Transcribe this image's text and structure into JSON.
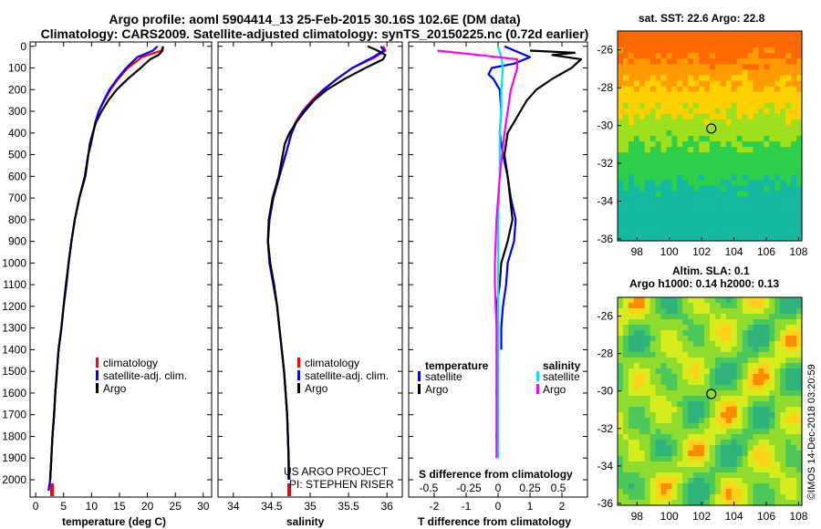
{
  "header": {
    "line1": "Argo profile: aoml 5904414_13 25-Feb-2015 30.16S 102.6E (DM data)",
    "line2": "Climatology: CARS2009. Satellite-adjusted climatology: synTS_20150225.nc (0.72d earlier)"
  },
  "colors": {
    "climatology": "#ff0000",
    "satellite": "#0000ff",
    "argo": "#000000",
    "sat_salinity": "#00e5ff",
    "argo_salinity_diff": "#ff00ff"
  },
  "depth_ticks": [
    "0",
    "100",
    "200",
    "300",
    "400",
    "500",
    "600",
    "700",
    "800",
    "900",
    "1000",
    "1100",
    "1200",
    "1300",
    "1400",
    "1500",
    "1600",
    "1700",
    "1800",
    "1900",
    "2000"
  ],
  "legend": {
    "climatology": "climatology",
    "satellite": "satellite-adj. clim.",
    "argo": "Argo"
  },
  "diff_legend": {
    "temperature_title": "temperature",
    "salinity_title": "salinity",
    "satellite": "satellite",
    "argo": "Argo"
  },
  "credits": {
    "line1": "US ARGO PROJECT",
    "line2": "PI: STEPHEN RISER"
  },
  "maps": {
    "sst_title": "sat. SST: 22.6 Argo: 22.8",
    "sla_line1": "Altim. SLA: 0.1",
    "sla_line2": "Argo h1000: 0.14 h2000: 0.13",
    "lon_ticks": [
      "98",
      "100",
      "102",
      "104",
      "106",
      "108"
    ],
    "lat_ticks": [
      "-26",
      "-28",
      "-30",
      "-32",
      "-34",
      "-36"
    ]
  },
  "stamp": "©IMOS 14-Dec-2018 03:20:59",
  "chart_data": [
    {
      "type": "line",
      "xlabel": "temperature (deg C)",
      "ylabel": "",
      "xlim": [
        -1,
        31.5
      ],
      "ylim": [
        2080,
        -20
      ],
      "x_ticks": [
        "0",
        "5",
        "10",
        "15",
        "20",
        "25",
        "30"
      ],
      "series": [
        {
          "name": "climatology",
          "x": [
            22.8,
            22.5,
            19.0,
            16.5,
            14.8,
            13.4,
            12.3,
            11.3,
            10.7,
            10.3,
            9.9,
            9.4,
            8.8,
            7.8,
            7.0,
            6.4,
            5.9,
            5.5,
            5.0,
            4.6,
            4.1,
            3.8,
            3.5,
            3.3,
            3.0,
            2.8,
            2.6,
            2.3
          ],
          "y": [
            0,
            20,
            50,
            100,
            150,
            200,
            250,
            300,
            350,
            400,
            450,
            500,
            600,
            700,
            800,
            900,
            1000,
            1100,
            1200,
            1300,
            1400,
            1500,
            1600,
            1700,
            1800,
            1900,
            2000,
            2050
          ]
        },
        {
          "name": "satellite-adj. clim.",
          "x": [
            21.8,
            21.0,
            18.2,
            16.2,
            14.6,
            13.2,
            12.2,
            11.3,
            10.7,
            10.3,
            9.9,
            9.4,
            8.8,
            7.8,
            7.0,
            6.4,
            5.9,
            5.5,
            5.0,
            4.6,
            4.1,
            3.8,
            3.5,
            3.3,
            3.0,
            2.8,
            2.6,
            2.3
          ],
          "y": [
            0,
            20,
            50,
            100,
            150,
            200,
            250,
            300,
            350,
            400,
            450,
            500,
            600,
            700,
            800,
            900,
            1000,
            1100,
            1200,
            1300,
            1400,
            1500,
            1600,
            1700,
            1800,
            1900,
            2000,
            2050
          ]
        },
        {
          "name": "Argo",
          "x": [
            22.8,
            22.7,
            22.0,
            20.5,
            18.8,
            16.5,
            14.5,
            13.0,
            11.8,
            10.8,
            10.2,
            9.7,
            8.9,
            7.8,
            7.0,
            6.4,
            5.9,
            5.4,
            5.0,
            4.6,
            4.1,
            3.8,
            3.5,
            3.3,
            3.0,
            2.8,
            2.6
          ],
          "y": [
            0,
            20,
            40,
            60,
            100,
            150,
            200,
            250,
            300,
            350,
            400,
            450,
            600,
            700,
            800,
            900,
            1000,
            1100,
            1200,
            1300,
            1400,
            1500,
            1600,
            1700,
            1800,
            1900,
            2000
          ]
        }
      ]
    },
    {
      "type": "line",
      "xlabel": "salinity",
      "ylabel": "",
      "xlim": [
        33.8,
        36.2
      ],
      "ylim": [
        2080,
        -20
      ],
      "x_ticks": [
        "34",
        "34.5",
        "35",
        "35.5",
        "36"
      ],
      "series": [
        {
          "name": "climatology",
          "x": [
            35.95,
            35.98,
            35.85,
            35.55,
            35.35,
            35.17,
            35.02,
            34.9,
            34.81,
            34.75,
            34.72,
            34.68,
            34.6,
            34.52,
            34.47,
            34.45,
            34.48,
            34.53,
            34.57,
            34.6,
            34.63,
            34.66,
            34.68,
            34.7,
            34.71,
            34.72,
            34.72
          ],
          "y": [
            0,
            20,
            50,
            100,
            150,
            200,
            250,
            300,
            350,
            400,
            450,
            500,
            600,
            700,
            800,
            900,
            1000,
            1100,
            1200,
            1300,
            1400,
            1500,
            1600,
            1700,
            1800,
            1900,
            2000
          ]
        },
        {
          "name": "satellite-adj. clim.",
          "x": [
            35.92,
            35.96,
            35.82,
            35.55,
            35.35,
            35.18,
            35.04,
            34.91,
            34.82,
            34.76,
            34.72,
            34.68,
            34.6,
            34.52,
            34.47,
            34.45,
            34.47,
            34.52,
            34.57,
            34.6,
            34.63,
            34.66,
            34.68,
            34.7,
            34.71,
            34.72,
            34.73
          ],
          "y": [
            0,
            20,
            50,
            100,
            150,
            200,
            250,
            300,
            350,
            400,
            450,
            500,
            600,
            700,
            800,
            900,
            1000,
            1100,
            1200,
            1300,
            1400,
            1500,
            1600,
            1700,
            1800,
            1900,
            2000
          ]
        },
        {
          "name": "Argo",
          "x": [
            35.75,
            35.88,
            35.98,
            35.95,
            35.72,
            35.45,
            35.22,
            35.05,
            34.93,
            34.82,
            34.73,
            34.67,
            34.59,
            34.51,
            34.46,
            34.45,
            34.48,
            34.53,
            34.57,
            34.6,
            34.63,
            34.66,
            34.68,
            34.7,
            34.71,
            34.72,
            34.72
          ],
          "y": [
            0,
            20,
            40,
            60,
            100,
            150,
            200,
            250,
            300,
            350,
            400,
            450,
            600,
            700,
            800,
            900,
            1000,
            1100,
            1200,
            1300,
            1400,
            1500,
            1600,
            1700,
            1800,
            1900,
            2000
          ]
        }
      ]
    },
    {
      "type": "line",
      "xlabel": "T difference from climatology",
      "ylabel": "",
      "xlim": [
        -2.8,
        2.8
      ],
      "ylim": [
        2080,
        -20
      ],
      "x_ticks": [
        "-2",
        "-1",
        "0",
        "1",
        "2"
      ],
      "top_xlabel": "S difference from climatology",
      "top_x_ticks": [
        "-0.5",
        "-0.25",
        "0",
        "0.25",
        "0.5"
      ],
      "series": [
        {
          "name": "temperature satellite",
          "x": [
            0.2,
            1.0,
            0.5,
            -0.2,
            -0.3,
            -0.15,
            0.05,
            0.1,
            0.05,
            0.15,
            0.3,
            0.4,
            0.55,
            0.5,
            0.3,
            0.25,
            0.15,
            0.1,
            0.1
          ],
          "y": [
            0,
            50,
            80,
            100,
            130,
            150,
            200,
            300,
            400,
            500,
            600,
            700,
            800,
            900,
            1000,
            1100,
            1200,
            1300,
            1400
          ]
        },
        {
          "name": "temperature Argo",
          "x": [
            1.0,
            2.4,
            1.7,
            2.6,
            2.3,
            1.7,
            1.2,
            0.9,
            0.7,
            0.5,
            0.3,
            0.2,
            0.3,
            0.45,
            0.3,
            0.1,
            0.05,
            -0.05,
            0.0,
            -0.05,
            0.0,
            -0.05,
            0.0,
            -0.05,
            0.0
          ],
          "y": [
            20,
            30,
            40,
            60,
            100,
            150,
            200,
            250,
            300,
            350,
            400,
            500,
            600,
            800,
            900,
            1000,
            1100,
            1200,
            1300,
            1400,
            1500,
            1600,
            1700,
            1800,
            1900
          ]
        },
        {
          "name": "salinity satellite",
          "x": [
            0.0,
            0.1,
            0.15,
            0.1,
            0.1,
            0.05,
            0.05,
            0.0,
            0.0,
            0.0,
            0.0,
            0.0
          ],
          "y": [
            0,
            50,
            100,
            200,
            300,
            400,
            600,
            800,
            1000,
            1400,
            1800,
            1900
          ]
        },
        {
          "name": "salinity Argo",
          "x": [
            -1.9,
            -0.6,
            0.6,
            0.6,
            0.5,
            0.4,
            0.3,
            0.2,
            0.05,
            -0.05,
            -0.1,
            -0.1,
            -0.05,
            -0.05,
            -0.05
          ],
          "y": [
            20,
            40,
            60,
            100,
            150,
            200,
            300,
            400,
            600,
            800,
            1000,
            1100,
            1300,
            1600,
            1900
          ]
        }
      ]
    }
  ]
}
